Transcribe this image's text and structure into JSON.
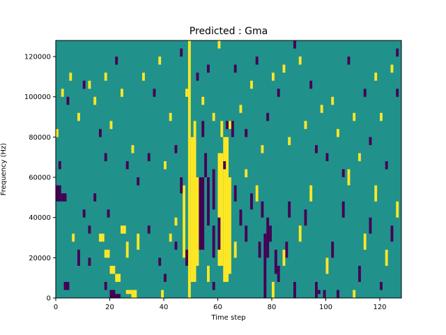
{
  "chart_data": {
    "type": "heatmap",
    "title": "Predicted : Gma",
    "xlabel": "Time step",
    "ylabel": "Frequency (Hz)",
    "xlim": [
      0,
      128
    ],
    "ylim": [
      0,
      128000
    ],
    "xticks": [
      0,
      20,
      40,
      60,
      80,
      100,
      120
    ],
    "yticks": [
      0,
      20000,
      40000,
      60000,
      80000,
      100000,
      120000
    ],
    "grid": false,
    "legend": "none",
    "colors": {
      "low": "#440154",
      "mid": "#21918c",
      "high": "#fde725"
    },
    "values_legend": {
      "-1": "low",
      "0": "mid",
      "1": "high"
    },
    "frame": "#000000",
    "cells": [
      [
        49,
        50,
        0,
        128000,
        1
      ],
      [
        50,
        52,
        8000,
        80000,
        1
      ],
      [
        52,
        53,
        16000,
        60000,
        1
      ],
      [
        60,
        62,
        16000,
        72000,
        1
      ],
      [
        62,
        64,
        8000,
        80000,
        1
      ],
      [
        63,
        65,
        12000,
        60000,
        1
      ],
      [
        47,
        48,
        20000,
        56000,
        1
      ],
      [
        51,
        52,
        80000,
        88000,
        1
      ],
      [
        61,
        62,
        80000,
        88000,
        1
      ],
      [
        58,
        59,
        20000,
        36000,
        -1
      ],
      [
        60,
        61,
        24000,
        40000,
        -1
      ],
      [
        53,
        55,
        24000,
        60000,
        -1
      ],
      [
        56,
        57,
        36000,
        60000,
        -1
      ],
      [
        55,
        56,
        60000,
        72000,
        -1
      ],
      [
        58,
        59,
        44000,
        64000,
        -1
      ],
      [
        54,
        55,
        80000,
        88000,
        -1
      ],
      [
        63,
        64,
        84000,
        88000,
        -1
      ],
      [
        65,
        66,
        80000,
        88000,
        -1
      ],
      [
        77,
        78,
        0,
        32000,
        -1
      ],
      [
        78,
        79,
        20000,
        40000,
        -1
      ],
      [
        76,
        77,
        40000,
        48000,
        -1
      ],
      [
        79,
        80,
        28000,
        36000,
        -1
      ],
      [
        75,
        76,
        20000,
        28000,
        -1
      ],
      [
        81,
        82,
        12000,
        24000,
        -1
      ],
      [
        85,
        86,
        20000,
        28000,
        -1
      ],
      [
        66,
        67,
        48000,
        56000,
        -1
      ],
      [
        70,
        71,
        28000,
        36000,
        -1
      ],
      [
        20,
        22,
        0,
        4000,
        -1
      ],
      [
        22,
        24,
        0,
        2000,
        -1
      ],
      [
        18,
        19,
        4000,
        8000,
        -1
      ],
      [
        26,
        28,
        2000,
        4000,
        1
      ],
      [
        28,
        30,
        0,
        4000,
        1
      ],
      [
        39,
        40,
        0,
        4000,
        1
      ],
      [
        20,
        22,
        12000,
        16000,
        1
      ],
      [
        22,
        24,
        8000,
        12000,
        1
      ],
      [
        16,
        18,
        28000,
        32000,
        1
      ],
      [
        18,
        20,
        20000,
        24000,
        1
      ],
      [
        26,
        27,
        20000,
        28000,
        1
      ],
      [
        30,
        31,
        24000,
        32000,
        1
      ],
      [
        44,
        45,
        24000,
        28000,
        -1
      ],
      [
        12,
        13,
        32000,
        36000,
        -1
      ],
      [
        14,
        15,
        48000,
        52000,
        -1
      ],
      [
        2,
        4,
        48000,
        52000,
        -1
      ],
      [
        1,
        2,
        64000,
        68000,
        -1
      ],
      [
        4,
        5,
        96000,
        100000,
        -1
      ],
      [
        5,
        6,
        108000,
        112000,
        1
      ],
      [
        2,
        3,
        100000,
        104000,
        1
      ],
      [
        0,
        1,
        80000,
        84000,
        1
      ],
      [
        3,
        5,
        4000,
        8000,
        -1
      ],
      [
        0,
        2,
        48000,
        56000,
        -1
      ],
      [
        18,
        19,
        68000,
        72000,
        -1
      ],
      [
        24,
        26,
        32000,
        36000,
        1
      ],
      [
        12,
        13,
        16000,
        20000,
        -1
      ],
      [
        19,
        20,
        40000,
        44000,
        -1
      ],
      [
        8,
        9,
        16000,
        24000,
        -1
      ],
      [
        10,
        11,
        40000,
        44000,
        -1
      ],
      [
        6,
        7,
        28000,
        32000,
        1
      ],
      [
        34,
        35,
        32000,
        36000,
        -1
      ],
      [
        38,
        39,
        16000,
        20000,
        -1
      ],
      [
        40,
        41,
        8000,
        12000,
        -1
      ],
      [
        42,
        43,
        28000,
        32000,
        1
      ],
      [
        44,
        45,
        36000,
        40000,
        1
      ],
      [
        46,
        47,
        52000,
        60000,
        -1
      ],
      [
        48,
        49,
        16000,
        24000,
        -1
      ],
      [
        56,
        57,
        8000,
        16000,
        1
      ],
      [
        58,
        59,
        4000,
        8000,
        -1
      ],
      [
        66,
        67,
        20000,
        28000,
        1
      ],
      [
        68,
        69,
        36000,
        44000,
        -1
      ],
      [
        70,
        71,
        60000,
        64000,
        1
      ],
      [
        72,
        73,
        44000,
        52000,
        -1
      ],
      [
        74,
        75,
        48000,
        56000,
        1
      ],
      [
        80,
        81,
        0,
        8000,
        1
      ],
      [
        82,
        83,
        8000,
        16000,
        -1
      ],
      [
        84,
        85,
        16000,
        24000,
        1
      ],
      [
        86,
        87,
        40000,
        48000,
        -1
      ],
      [
        88,
        89,
        0,
        8000,
        -1
      ],
      [
        90,
        91,
        28000,
        36000,
        1
      ],
      [
        92,
        93,
        36000,
        44000,
        -1
      ],
      [
        94,
        95,
        48000,
        56000,
        1
      ],
      [
        96,
        97,
        0,
        8000,
        -1
      ],
      [
        97,
        98,
        2000,
        4000,
        -1
      ],
      [
        99,
        100,
        0,
        4000,
        -1
      ],
      [
        100,
        101,
        12000,
        20000,
        1
      ],
      [
        102,
        103,
        20000,
        28000,
        -1
      ],
      [
        104,
        105,
        0,
        4000,
        -1
      ],
      [
        106,
        107,
        40000,
        48000,
        -1
      ],
      [
        108,
        109,
        56000,
        64000,
        1
      ],
      [
        110,
        111,
        0,
        4000,
        1
      ],
      [
        112,
        113,
        8000,
        16000,
        -1
      ],
      [
        114,
        115,
        24000,
        32000,
        1
      ],
      [
        116,
        117,
        32000,
        40000,
        -1
      ],
      [
        118,
        119,
        48000,
        56000,
        1
      ],
      [
        120,
        121,
        4000,
        8000,
        -1
      ],
      [
        122,
        123,
        16000,
        24000,
        1
      ],
      [
        124,
        125,
        28000,
        36000,
        -1
      ],
      [
        126,
        127,
        40000,
        48000,
        1
      ],
      [
        8,
        9,
        88000,
        92000,
        1
      ],
      [
        10,
        11,
        104000,
        108000,
        -1
      ],
      [
        12,
        13,
        104000,
        108000,
        1
      ],
      [
        14,
        15,
        96000,
        100000,
        1
      ],
      [
        16,
        17,
        80000,
        84000,
        -1
      ],
      [
        18,
        19,
        108000,
        112000,
        1
      ],
      [
        20,
        21,
        84000,
        88000,
        1
      ],
      [
        22,
        23,
        116000,
        120000,
        -1
      ],
      [
        24,
        25,
        100000,
        104000,
        1
      ],
      [
        26,
        27,
        64000,
        68000,
        -1
      ],
      [
        28,
        29,
        72000,
        76000,
        1
      ],
      [
        30,
        31,
        56000,
        60000,
        -1
      ],
      [
        32,
        33,
        108000,
        112000,
        1
      ],
      [
        34,
        35,
        68000,
        72000,
        -1
      ],
      [
        36,
        37,
        100000,
        104000,
        -1
      ],
      [
        38,
        39,
        116000,
        120000,
        1
      ],
      [
        40,
        41,
        64000,
        68000,
        1
      ],
      [
        42,
        43,
        88000,
        92000,
        1
      ],
      [
        44,
        45,
        72000,
        76000,
        -1
      ],
      [
        46,
        47,
        120000,
        124000,
        -1
      ],
      [
        48,
        49,
        100000,
        104000,
        1
      ],
      [
        52,
        53,
        108000,
        112000,
        -1
      ],
      [
        54,
        55,
        96000,
        100000,
        1
      ],
      [
        56,
        57,
        112000,
        116000,
        -1
      ],
      [
        58,
        59,
        88000,
        92000,
        1
      ],
      [
        60,
        61,
        124000,
        128000,
        1
      ],
      [
        62,
        63,
        64000,
        68000,
        -1
      ],
      [
        64,
        65,
        84000,
        88000,
        1
      ],
      [
        66,
        67,
        112000,
        116000,
        -1
      ],
      [
        68,
        69,
        92000,
        96000,
        1
      ],
      [
        70,
        71,
        80000,
        84000,
        -1
      ],
      [
        72,
        73,
        104000,
        108000,
        1
      ],
      [
        74,
        75,
        116000,
        120000,
        -1
      ],
      [
        76,
        77,
        72000,
        76000,
        1
      ],
      [
        78,
        79,
        88000,
        92000,
        -1
      ],
      [
        80,
        81,
        108000,
        112000,
        1
      ],
      [
        82,
        83,
        100000,
        104000,
        -1
      ],
      [
        84,
        85,
        112000,
        116000,
        1
      ],
      [
        86,
        87,
        76000,
        80000,
        1
      ],
      [
        88,
        89,
        124000,
        128000,
        -1
      ],
      [
        90,
        91,
        116000,
        120000,
        1
      ],
      [
        92,
        93,
        84000,
        88000,
        1
      ],
      [
        94,
        95,
        104000,
        108000,
        -1
      ],
      [
        96,
        97,
        72000,
        76000,
        -1
      ],
      [
        98,
        99,
        92000,
        96000,
        1
      ],
      [
        100,
        101,
        68000,
        72000,
        -1
      ],
      [
        102,
        103,
        96000,
        100000,
        1
      ],
      [
        104,
        105,
        80000,
        84000,
        1
      ],
      [
        106,
        107,
        60000,
        64000,
        -1
      ],
      [
        108,
        109,
        116000,
        120000,
        -1
      ],
      [
        110,
        111,
        88000,
        92000,
        1
      ],
      [
        112,
        113,
        68000,
        72000,
        1
      ],
      [
        114,
        115,
        100000,
        104000,
        -1
      ],
      [
        116,
        117,
        76000,
        80000,
        -1
      ],
      [
        118,
        119,
        108000,
        112000,
        1
      ],
      [
        120,
        121,
        88000,
        92000,
        1
      ],
      [
        122,
        123,
        64000,
        68000,
        -1
      ],
      [
        124,
        125,
        112000,
        116000,
        1
      ],
      [
        126,
        127,
        100000,
        104000,
        -1
      ],
      [
        126,
        127,
        120000,
        124000,
        -1
      ]
    ]
  }
}
